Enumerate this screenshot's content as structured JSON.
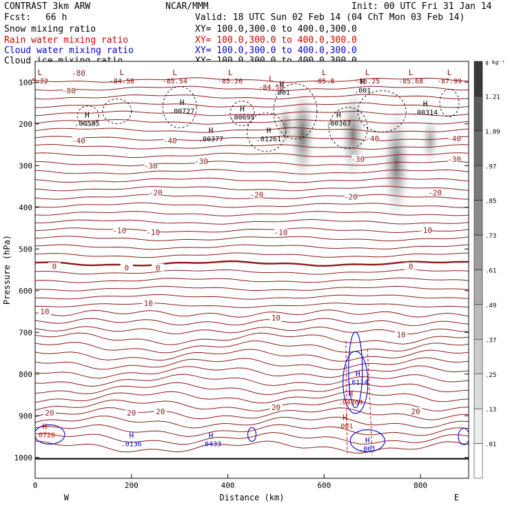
{
  "header": {
    "model": "CONTRAST  3km ARW",
    "org": "NCAR/MMM",
    "init": "Init: 00 UTC Fri 31 Jan 14",
    "fcst_label": "Fcst:",
    "fcst_value": "66 h",
    "valid": "Valid: 18 UTC Sun 02 Feb 14 (04 ChT Mon 03 Feb 14)",
    "fields": [
      {
        "name": "Snow mixing ratio",
        "xy": "XY= 100.0,300.0 to 400.0,300.0",
        "color": "#000000"
      },
      {
        "name": "Rain water mixing ratio",
        "xy": "XY= 100.0,300.0 to 400.0,300.0",
        "color": "#cc0000"
      },
      {
        "name": "Cloud water mixing ratio",
        "xy": "XY= 100.0,300.0 to 400.0,300.0",
        "color": "#0000cc"
      },
      {
        "name": "Cloud ice mixing ratio",
        "xy": "XY= 100.0,300.0 to 400.0,300.0",
        "color": "#000000"
      }
    ]
  },
  "chart_data": {
    "type": "heatmap",
    "title": "Vertical cross section",
    "xlabel": "Distance (km)",
    "ylabel": "Pressure (hPa)",
    "xlim": [
      0,
      900
    ],
    "ylim": [
      1050,
      50
    ],
    "x_ticks": [
      "0",
      "200",
      "400",
      "600",
      "800"
    ],
    "y_ticks": [
      "100",
      "200",
      "300",
      "400",
      "500",
      "600",
      "700",
      "800",
      "900",
      "1000"
    ],
    "x_tick_values": [
      0,
      200,
      400,
      600,
      800
    ],
    "y_tick_values": [
      100,
      200,
      300,
      400,
      500,
      600,
      700,
      800,
      900,
      1000
    ],
    "west_label": "W",
    "east_label": "E",
    "colorbar": {
      "units": "g kg⁻¹",
      "labels": [
        ".01",
        ".13",
        ".25",
        ".37",
        ".49",
        ".61",
        ".73",
        ".85",
        ".97",
        "1.09",
        "1.21"
      ],
      "colors": [
        "#ffffff",
        "#ededed",
        "#dcdcdc",
        "#cccccc",
        "#bcbcbc",
        "#ababab",
        "#9b9b9b",
        "#8a8a8a",
        "#7a7a7a",
        "#6a6a6a",
        "#595959",
        "#3a3a3a"
      ]
    },
    "temperature_labels": [
      {
        "text": "-80",
        "x": 90,
        "p": 78
      },
      {
        "text": "-80",
        "x": 70,
        "p": 120
      },
      {
        "text": "-40",
        "x": 90,
        "p": 240
      },
      {
        "text": "-40",
        "x": 280,
        "p": 240
      },
      {
        "text": "-40",
        "x": 700,
        "p": 235
      },
      {
        "text": "-40",
        "x": 870,
        "p": 235
      },
      {
        "text": "-30",
        "x": 240,
        "p": 300
      },
      {
        "text": "-30",
        "x": 345,
        "p": 290
      },
      {
        "text": "-30",
        "x": 670,
        "p": 285
      },
      {
        "text": "-30",
        "x": 870,
        "p": 285
      },
      {
        "text": "-20",
        "x": 250,
        "p": 365
      },
      {
        "text": "-20",
        "x": 460,
        "p": 370
      },
      {
        "text": "-20",
        "x": 655,
        "p": 375
      },
      {
        "text": "-20",
        "x": 830,
        "p": 365
      },
      {
        "text": "-10",
        "x": 175,
        "p": 456
      },
      {
        "text": "-10",
        "x": 245,
        "p": 460
      },
      {
        "text": "-10",
        "x": 510,
        "p": 460
      },
      {
        "text": "-10",
        "x": 810,
        "p": 455
      },
      {
        "text": "0",
        "x": 40,
        "p": 542
      },
      {
        "text": "0",
        "x": 190,
        "p": 545
      },
      {
        "text": "0",
        "x": 255,
        "p": 545
      },
      {
        "text": "0",
        "x": 780,
        "p": 542
      },
      {
        "text": "10",
        "x": 20,
        "p": 650
      },
      {
        "text": "10",
        "x": 235,
        "p": 630
      },
      {
        "text": "10",
        "x": 500,
        "p": 665
      },
      {
        "text": "10",
        "x": 760,
        "p": 705
      },
      {
        "text": "20",
        "x": 30,
        "p": 893
      },
      {
        "text": "20",
        "x": 200,
        "p": 893
      },
      {
        "text": "20",
        "x": 260,
        "p": 890
      },
      {
        "text": "20",
        "x": 500,
        "p": 880
      },
      {
        "text": "20",
        "x": 790,
        "p": 890
      }
    ],
    "extrema": [
      {
        "kind": "L",
        "value": "5.22",
        "x": 10,
        "p": 93,
        "color": "#8b0000"
      },
      {
        "kind": "L",
        "value": "-84.58",
        "x": 180,
        "p": 93,
        "color": "#8b0000"
      },
      {
        "kind": "L",
        "value": "-85.54",
        "x": 290,
        "p": 93,
        "color": "#8b0000"
      },
      {
        "kind": "L",
        "value": "-85.26",
        "x": 405,
        "p": 93,
        "color": "#8b0000"
      },
      {
        "kind": "L",
        "value": "-84.58",
        "x": 490,
        "p": 108,
        "color": "#8b0000"
      },
      {
        "kind": "L",
        "value": "-85.8",
        "x": 600,
        "p": 93,
        "color": "#8b0000"
      },
      {
        "kind": "L",
        "value": "-85.25",
        "x": 690,
        "p": 93,
        "color": "#8b0000"
      },
      {
        "kind": "L",
        "value": "-85.68",
        "x": 780,
        "p": 93,
        "color": "#8b0000"
      },
      {
        "kind": "L",
        "value": "-87.99",
        "x": 860,
        "p": 93,
        "color": "#8b0000"
      },
      {
        "kind": "H",
        "value": ".00727",
        "x": 305,
        "p": 165,
        "color": "#000000"
      },
      {
        "kind": "H",
        "value": ".00695",
        "x": 430,
        "p": 180,
        "color": "#000000"
      },
      {
        "kind": "H",
        "value": ".00585",
        "x": 108,
        "p": 195,
        "color": "#000000"
      },
      {
        "kind": "H",
        "value": ".00377",
        "x": 365,
        "p": 232,
        "color": "#000000"
      },
      {
        "kind": "H",
        "value": ".01261",
        "x": 485,
        "p": 232,
        "color": "#000000"
      },
      {
        "kind": "H",
        "value": ".00367",
        "x": 630,
        "p": 195,
        "color": "#000000"
      },
      {
        "kind": "H",
        "value": ".00314",
        "x": 810,
        "p": 168,
        "color": "#000000"
      },
      {
        "kind": "H",
        "value": ".001",
        "x": 512,
        "p": 120,
        "color": "#000000"
      },
      {
        "kind": "H",
        "value": ".001",
        "x": 680,
        "p": 115,
        "color": "#000000"
      },
      {
        "kind": "H",
        "value": ".6114",
        "x": 670,
        "p": 815,
        "color": "#0000cc"
      },
      {
        "kind": "H",
        "value": ".04364",
        "x": 655,
        "p": 863,
        "color": "#cc0000"
      },
      {
        "kind": "H",
        "value": ".001",
        "x": 643,
        "p": 920,
        "color": "#cc0000"
      },
      {
        "kind": "H",
        "value": ".0136",
        "x": 200,
        "p": 963,
        "color": "#0000cc"
      },
      {
        "kind": "H",
        "value": ".0433",
        "x": 365,
        "p": 963,
        "color": "#0000cc"
      },
      {
        "kind": "H",
        "value": ".0728",
        "x": 20,
        "p": 942,
        "color": "#cc0000"
      },
      {
        "kind": "H",
        "value": ".001",
        "x": 690,
        "p": 975,
        "color": "#0000cc"
      }
    ],
    "snow_plumes": [
      {
        "x": 555,
        "p_top": 110,
        "p_bot": 340,
        "width_km": 55,
        "peak": 1.2
      },
      {
        "x": 520,
        "p_top": 150,
        "p_bot": 260,
        "width_km": 40,
        "peak": 0.6
      },
      {
        "x": 660,
        "p_top": 110,
        "p_bot": 340,
        "width_km": 55,
        "peak": 0.9
      },
      {
        "x": 750,
        "p_top": 150,
        "p_bot": 440,
        "width_km": 60,
        "peak": 1.0
      },
      {
        "x": 820,
        "p_top": 180,
        "p_bot": 300,
        "width_km": 40,
        "peak": 0.4
      }
    ]
  }
}
